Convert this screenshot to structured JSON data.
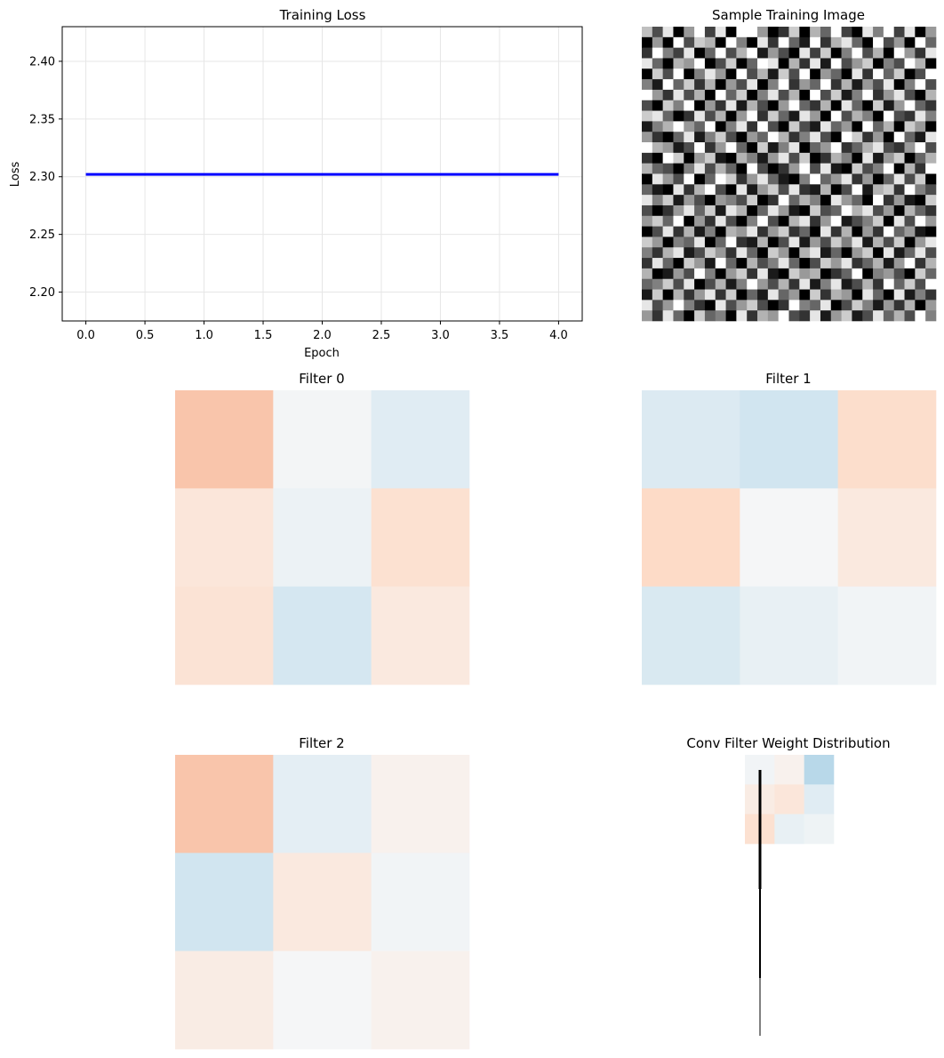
{
  "chart_data": [
    {
      "type": "line",
      "title": "Training Loss",
      "xlabel": "Epoch",
      "ylabel": "Loss",
      "x": [
        0,
        1,
        2,
        3,
        4
      ],
      "series": [
        {
          "values": [
            2.302,
            2.302,
            2.302,
            2.302,
            2.302
          ],
          "color": "#0000ff"
        }
      ],
      "xlim": [
        -0.2,
        4.2
      ],
      "ylim": [
        2.175,
        2.43
      ],
      "xticks": [
        0.0,
        0.5,
        1.0,
        1.5,
        2.0,
        2.5,
        3.0,
        3.5,
        4.0
      ],
      "xtick_labels": [
        "0.0",
        "0.5",
        "1.0",
        "1.5",
        "2.0",
        "2.5",
        "3.0",
        "3.5",
        "4.0"
      ],
      "yticks": [
        2.2,
        2.25,
        2.3,
        2.35,
        2.4
      ],
      "ytick_labels": [
        "2.20",
        "2.25",
        "2.30",
        "2.35",
        "2.40"
      ],
      "grid": true
    },
    {
      "type": "heatmap",
      "title": "Sample Training Image",
      "colormap": "gray",
      "rows": 28,
      "cols": 28,
      "values": [
        [
          0.75,
          0.3,
          0.9,
          0,
          0.6,
          1,
          0.25,
          0.9,
          0,
          1,
          1,
          0.6,
          0,
          0.2,
          0.8,
          0,
          0.7,
          0.4,
          1,
          0.25,
          0,
          0.9,
          0.5,
          1,
          0.25,
          0.9,
          0,
          0.6
        ],
        [
          0,
          0.6,
          0,
          1,
          0.3,
          0.8,
          0.7,
          0,
          1,
          0.5,
          0,
          0.9,
          0.2,
          1,
          0.4,
          0.1,
          1,
          0.2,
          0.7,
          0.9,
          0.4,
          0,
          1,
          0.3,
          0.6,
          0,
          1,
          0.4
        ],
        [
          0.2,
          1,
          0.5,
          0.25,
          0.9,
          0,
          0.4,
          1,
          0.3,
          0.7,
          1,
          0.1,
          0.6,
          0.3,
          0,
          0.9,
          0.25,
          0.8,
          0,
          0.5,
          1,
          0.3,
          0.7,
          0,
          1,
          0.6,
          0.2,
          0.9
        ],
        [
          0.9,
          0.4,
          0,
          0.7,
          0.6,
          1,
          0,
          0.3,
          0.8,
          0,
          0.4,
          1,
          0.9,
          0,
          0.7,
          0.2,
          0.9,
          0.1,
          1,
          0.3,
          0.6,
          0.8,
          0,
          0.5,
          0.3,
          1,
          0.7,
          0
        ],
        [
          0,
          0.8,
          0.3,
          1,
          0,
          0.5,
          0.9,
          0.6,
          0,
          1,
          0.3,
          0.7,
          0.1,
          0.8,
          0.3,
          1,
          0,
          0.6,
          0.4,
          0,
          0.9,
          0.2,
          1,
          0.4,
          0.8,
          0,
          0.3,
          1
        ],
        [
          0.5,
          0.1,
          1,
          0.4,
          0.8,
          0.2,
          0.7,
          0,
          0.6,
          0.3,
          0.9,
          0,
          0.5,
          1,
          0.2,
          0.6,
          0.4,
          1,
          0.2,
          0.7,
          0.1,
          0.6,
          0.3,
          0.9,
          0,
          0.5,
          1,
          0.3
        ],
        [
          1,
          0.6,
          0.2,
          0.9,
          0.3,
          0.7,
          0,
          1,
          0.4,
          0.8,
          0,
          0.5,
          0.9,
          0.3,
          0.7,
          0,
          1,
          0.3,
          0.8,
          0.1,
          0.5,
          1,
          0.2,
          0.6,
          0.9,
          0.3,
          0,
          0.7
        ],
        [
          0.3,
          0,
          0.8,
          0.5,
          1,
          0,
          0.6,
          0.2,
          0.9,
          0.1,
          0.7,
          0.3,
          0,
          0.6,
          1,
          0.4,
          0.2,
          0.7,
          0,
          0.9,
          0.4,
          0,
          0.8,
          0.1,
          0.6,
          1,
          0.4,
          0.2
        ],
        [
          0.8,
          0.9,
          0.4,
          0,
          0.2,
          0.9,
          0.3,
          0.7,
          0,
          0.6,
          1,
          0.2,
          0.8,
          0.4,
          0.1,
          0.9,
          0.6,
          0,
          1,
          0.3,
          0.7,
          0.5,
          0,
          1,
          0.3,
          0.2,
          0.9,
          0.5
        ],
        [
          0.1,
          0.5,
          0.7,
          1,
          0.6,
          0.4,
          1,
          0,
          0.5,
          0.9,
          0.2,
          1,
          0.3,
          0,
          0.8,
          0.3,
          0.1,
          0.9,
          0.4,
          0.6,
          0,
          1,
          0.4,
          0.7,
          0,
          0.8,
          0.6,
          0
        ],
        [
          0.6,
          0.2,
          0,
          0.4,
          0.9,
          0.1,
          0.5,
          0.8,
          0.3,
          0,
          0.6,
          0.4,
          1,
          0.7,
          0.2,
          0.5,
          0.9,
          0.3,
          0,
          1,
          0.8,
          0.2,
          0.6,
          0,
          1,
          0.4,
          0.1,
          0.9
        ],
        [
          1,
          0.7,
          0.6,
          0.1,
          0.3,
          1,
          0.2,
          0.6,
          1,
          0.4,
          0,
          0.8,
          0.1,
          0.5,
          0.9,
          0,
          0.4,
          0.6,
          1,
          0.2,
          0.4,
          0.7,
          0.9,
          0.3,
          0.2,
          0.6,
          1,
          0.3
        ],
        [
          0.2,
          0,
          1,
          0.8,
          0,
          0.6,
          0.8,
          0.1,
          0,
          0.7,
          0.5,
          0.1,
          0.6,
          0.9,
          0.3,
          0.8,
          0,
          0.2,
          0.7,
          0.5,
          0,
          0.9,
          0.1,
          0.6,
          0.8,
          0,
          0.4,
          0.7
        ],
        [
          0.7,
          0.4,
          0.3,
          0,
          0.5,
          0.9,
          0.3,
          0.7,
          0.4,
          0,
          1,
          0.3,
          0,
          0.2,
          0.6,
          1,
          0.3,
          0.9,
          0.1,
          0,
          0.8,
          0.3,
          0.5,
          1,
          0,
          0.7,
          0.2,
          1
        ],
        [
          0,
          0.9,
          0.6,
          0.3,
          1,
          0,
          0.4,
          1,
          0.8,
          0.2,
          0.6,
          0.9,
          0.4,
          0.1,
          0,
          0.5,
          1,
          0.4,
          0.6,
          0.9,
          0.2,
          0.6,
          0,
          0.4,
          0.9,
          0.3,
          0.8,
          0
        ],
        [
          0.4,
          0.1,
          0,
          0.9,
          0.2,
          0.7,
          1,
          0.3,
          0,
          0.9,
          0.1,
          0.6,
          0.8,
          0.3,
          0.9,
          0.2,
          0.1,
          0.7,
          0,
          0.3,
          1,
          0.1,
          0.7,
          0.8,
          0.2,
          1,
          0.5,
          0.3
        ],
        [
          0.9,
          0.5,
          0.8,
          0.1,
          0.6,
          0.3,
          0,
          0.6,
          0.5,
          0.3,
          0.8,
          0,
          0.2,
          1,
          0.4,
          0.7,
          0.5,
          0,
          0.9,
          0.6,
          0.4,
          0,
          1,
          0.2,
          0.6,
          0.1,
          0,
          0.8
        ],
        [
          0.3,
          0,
          0.2,
          0.6,
          0.9,
          0.4,
          0.8,
          0.1,
          0.9,
          0.7,
          0,
          0.4,
          0.9,
          0.6,
          0.1,
          0,
          0.8,
          0.3,
          0.4,
          1,
          0.7,
          0.9,
          0.3,
          0.6,
          0,
          0.7,
          0.4,
          0.2
        ],
        [
          0.6,
          0.8,
          0.4,
          1,
          0,
          0.6,
          0.2,
          0.9,
          0.3,
          0,
          0.5,
          1,
          0.3,
          0,
          0.7,
          0.9,
          0.2,
          0.6,
          1,
          0.1,
          0.3,
          0.5,
          0.8,
          0,
          0.9,
          0.3,
          1,
          0.6
        ],
        [
          0,
          0.3,
          0.9,
          0.2,
          0.7,
          0.1,
          0.5,
          0,
          0.7,
          0.6,
          0.9,
          0.2,
          0.6,
          0.8,
          0.2,
          0.4,
          0,
          0.9,
          0.2,
          0.7,
          0,
          0.6,
          0.2,
          1,
          0.4,
          0.6,
          0.1,
          0
        ],
        [
          0.8,
          0.6,
          0,
          0.5,
          0.4,
          0.9,
          0,
          0.4,
          1,
          0.2,
          0.1,
          0.7,
          0,
          0.3,
          0.9,
          0.1,
          0.6,
          0.3,
          0.8,
          0.5,
          0.9,
          0.1,
          0.7,
          0.3,
          0.8,
          0,
          0.6,
          0.9
        ],
        [
          0.5,
          0.2,
          0.7,
          0.9,
          0.1,
          0.3,
          0.8,
          0.6,
          0.2,
          0.9,
          0.4,
          0,
          0.8,
          0.6,
          0,
          0.7,
          0.9,
          0.1,
          0.4,
          0,
          0.6,
          0.8,
          0,
          0.9,
          0.1,
          0.4,
          0.9,
          0.3
        ],
        [
          0.2,
          0.9,
          0.4,
          0,
          0.8,
          0.6,
          0.1,
          1,
          0.4,
          0,
          0.7,
          0.3,
          0.5,
          0.9,
          0.4,
          0,
          0.3,
          0.8,
          0.6,
          0.9,
          0.2,
          0.4,
          0.7,
          0.1,
          0.6,
          1,
          0.2,
          0.7
        ],
        [
          0.7,
          0,
          0.1,
          0.6,
          0.3,
          1,
          0.5,
          0,
          0.6,
          0.8,
          0.2,
          0.9,
          0.1,
          0,
          0.8,
          0.6,
          0.7,
          0,
          0.2,
          0.4,
          1,
          0,
          0.5,
          0.6,
          0.3,
          0,
          0.8,
          0.4
        ],
        [
          0.4,
          0.5,
          0.8,
          0.3,
          0.9,
          0,
          0.3,
          0.7,
          0.1,
          0.5,
          1,
          0.6,
          0.3,
          0.7,
          0.2,
          0.9,
          0.1,
          0.5,
          0.9,
          0.1,
          0.3,
          0.7,
          0.2,
          1,
          0.4,
          0.8,
          0.3,
          1
        ],
        [
          0.1,
          0.8,
          0,
          0.7,
          0.2,
          0.6,
          0.9,
          0.2,
          0.8,
          0,
          0.4,
          0.1,
          0.9,
          0.4,
          0.6,
          0,
          0.8,
          0.2,
          0.7,
          0.6,
          0,
          0.9,
          0.4,
          0,
          0.9,
          0.1,
          0.5,
          0.2
        ],
        [
          0.9,
          0.3,
          0.6,
          1,
          0.5,
          0.2,
          0,
          0.9,
          0.3,
          0.6,
          0.8,
          0.3,
          0,
          0.2,
          1,
          0.5,
          0.4,
          0.9,
          0,
          0.3,
          0.8,
          0.5,
          0.1,
          0.6,
          0.2,
          0.7,
          0,
          0.6
        ],
        [
          0.6,
          0.2,
          0.9,
          0.4,
          0,
          0.8,
          0.4,
          0.5,
          0,
          0.9,
          0.2,
          0.7,
          0.6,
          1,
          0.3,
          0.2,
          0.9,
          0.1,
          0.6,
          0.8,
          0.1,
          0.3,
          0.9,
          0.4,
          0.7,
          0.3,
          1,
          0.5
        ]
      ]
    },
    {
      "type": "heatmap",
      "title": "Filter 0",
      "colormap": "RdBu_r",
      "vmin": -1,
      "vmax": 1,
      "values": [
        [
          0.28,
          -0.02,
          -0.12
        ],
        [
          0.12,
          -0.06,
          0.16
        ],
        [
          0.14,
          -0.18,
          0.1
        ]
      ]
    },
    {
      "type": "heatmap",
      "title": "Filter 1",
      "colormap": "RdBu_r",
      "vmin": -1,
      "vmax": 1,
      "values": [
        [
          -0.14,
          -0.2,
          0.18
        ],
        [
          0.2,
          -0.01,
          0.1
        ],
        [
          -0.16,
          -0.08,
          -0.03
        ]
      ]
    },
    {
      "type": "heatmap",
      "title": "Filter 2",
      "colormap": "RdBu_r",
      "vmin": -1,
      "vmax": 1,
      "values": [
        [
          0.28,
          -0.1,
          0.04
        ],
        [
          -0.2,
          0.1,
          -0.03
        ],
        [
          0.08,
          -0.01,
          0.04
        ]
      ]
    },
    {
      "type": "heatmap",
      "title": "Conv Filter Weight Distribution",
      "colormap": "RdBu_r",
      "vmin": -1,
      "vmax": 1,
      "values": [
        [
          -0.03,
          0.04,
          -0.28
        ],
        [
          0.08,
          0.12,
          -0.12
        ],
        [
          0.16,
          -0.08,
          -0.05
        ]
      ]
    }
  ]
}
